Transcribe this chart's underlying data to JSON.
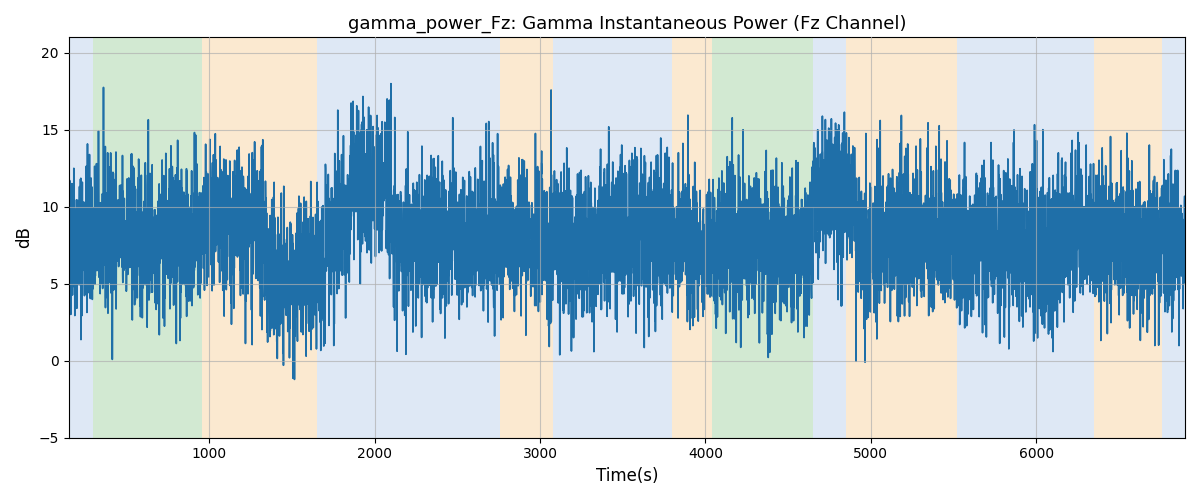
{
  "title": "gamma_power_Fz: Gamma Instantaneous Power (Fz Channel)",
  "xlabel": "Time(s)",
  "ylabel": "dB",
  "ylim": [
    -3,
    21
  ],
  "xlim": [
    150,
    6900
  ],
  "background_bands": [
    {
      "xmin": 150,
      "xmax": 295,
      "color": "#aec6e8",
      "alpha": 0.4
    },
    {
      "xmin": 295,
      "xmax": 955,
      "color": "#90c890",
      "alpha": 0.4
    },
    {
      "xmin": 955,
      "xmax": 1650,
      "color": "#f5c98a",
      "alpha": 0.4
    },
    {
      "xmin": 1650,
      "xmax": 2760,
      "color": "#aec6e8",
      "alpha": 0.4
    },
    {
      "xmin": 2760,
      "xmax": 3080,
      "color": "#f5c98a",
      "alpha": 0.4
    },
    {
      "xmin": 3080,
      "xmax": 3800,
      "color": "#aec6e8",
      "alpha": 0.4
    },
    {
      "xmin": 3800,
      "xmax": 4040,
      "color": "#f5c98a",
      "alpha": 0.4
    },
    {
      "xmin": 4040,
      "xmax": 4650,
      "color": "#90c890",
      "alpha": 0.4
    },
    {
      "xmin": 4650,
      "xmax": 4730,
      "color": "#aec6e8",
      "alpha": 0.4
    },
    {
      "xmin": 4730,
      "xmax": 4850,
      "color": "#aec6e8",
      "alpha": 0.4
    },
    {
      "xmin": 4850,
      "xmax": 5520,
      "color": "#f5c98a",
      "alpha": 0.4
    },
    {
      "xmin": 5520,
      "xmax": 6350,
      "color": "#aec6e8",
      "alpha": 0.4
    },
    {
      "xmin": 6350,
      "xmax": 6760,
      "color": "#f5c98a",
      "alpha": 0.4
    },
    {
      "xmin": 6760,
      "xmax": 6900,
      "color": "#aec6e8",
      "alpha": 0.4
    }
  ],
  "line_color": "#1f6fa8",
  "line_width": 1.2,
  "grid_color": "#b0b0b0",
  "grid_alpha": 0.7,
  "seed": 42,
  "n_points": 6700,
  "t_start": 150,
  "t_end": 6900,
  "yticks": [
    -5,
    0,
    5,
    10,
    15,
    20
  ],
  "xticks": [
    1000,
    2000,
    3000,
    4000,
    5000,
    6000
  ]
}
